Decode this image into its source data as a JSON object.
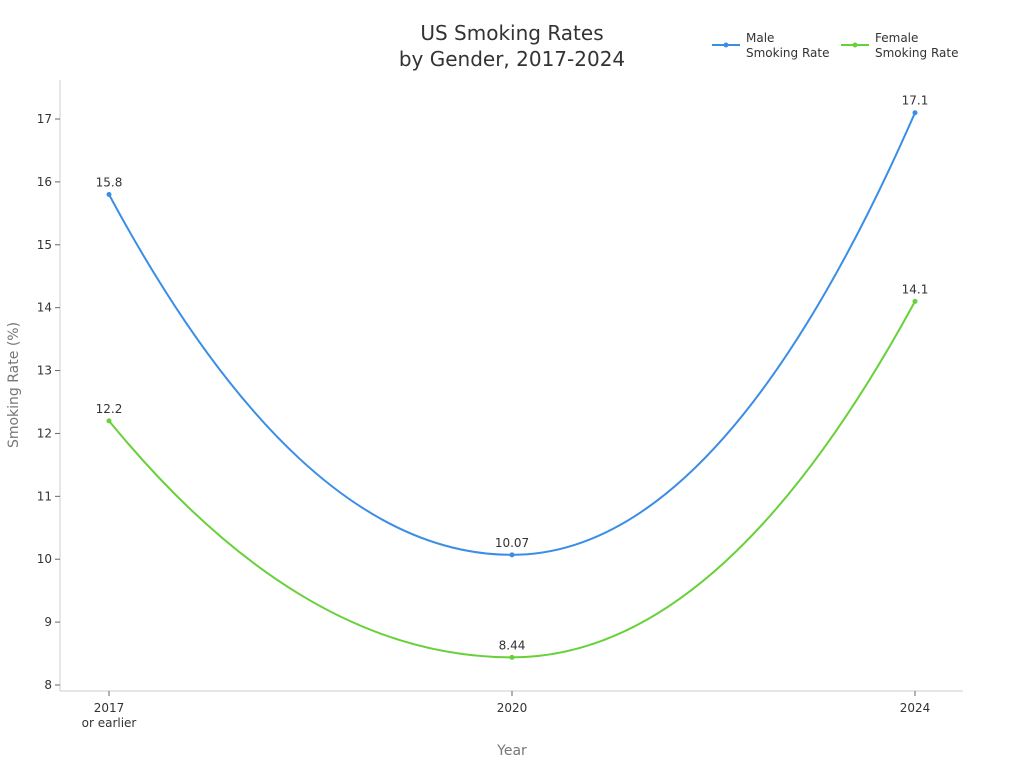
{
  "chart_data": {
    "type": "line",
    "title": "US Smoking Rates by Gender, 2017-2024",
    "title_lines": [
      "US Smoking Rates",
      "by Gender, 2017-2024"
    ],
    "xlabel": "Year",
    "ylabel": "Smoking Rate (%)",
    "categories": [
      "2017 or earlier",
      "2020",
      "2024"
    ],
    "category_lines": [
      [
        "2017",
        "or earlier"
      ],
      [
        "2020"
      ],
      [
        "2024"
      ]
    ],
    "ylim": [
      7.9,
      17.6
    ],
    "yticks": [
      8,
      9,
      10,
      11,
      12,
      13,
      14,
      15,
      16,
      17
    ],
    "grid": false,
    "legend_position": "top-right",
    "smooth": true,
    "series": [
      {
        "name": "Male Smoking Rate",
        "legend_lines": [
          "Male",
          "Smoking Rate"
        ],
        "color": "#3a8ee6",
        "values": [
          15.8,
          10.07,
          17.1
        ],
        "labels": [
          "15.8",
          "10.07",
          "17.1"
        ]
      },
      {
        "name": "Female Smoking Rate",
        "legend_lines": [
          "Female",
          "Smoking Rate"
        ],
        "color": "#67d13a",
        "values": [
          12.2,
          8.44,
          14.1
        ],
        "labels": [
          "12.2",
          "8.44",
          "14.1"
        ]
      }
    ]
  }
}
